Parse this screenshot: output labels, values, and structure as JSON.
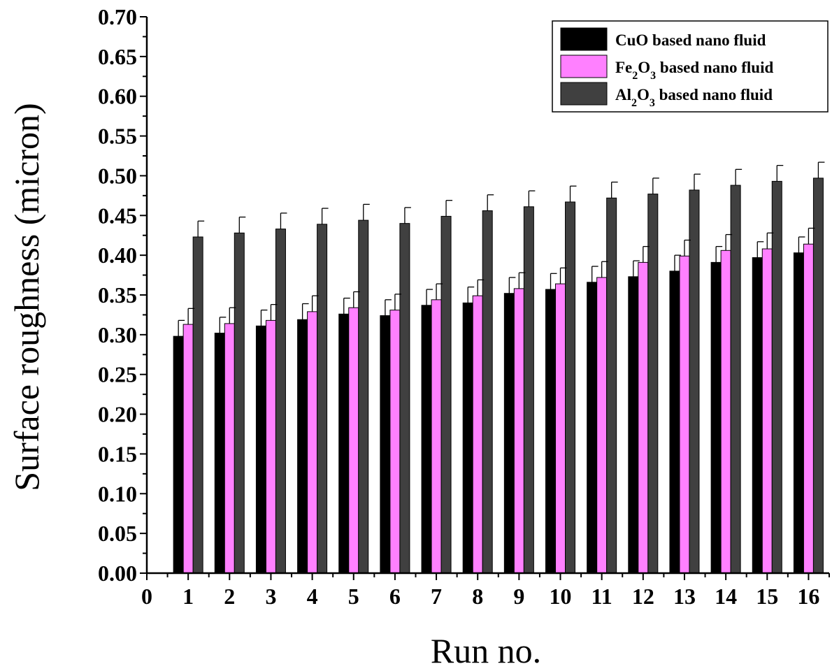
{
  "chart_data": {
    "type": "bar",
    "xlabel": "Run no.",
    "ylabel": "Surface roughness (micron)",
    "xlim": [
      0,
      16.5
    ],
    "ylim": [
      0,
      0.7
    ],
    "x_ticks": [
      0,
      1,
      2,
      3,
      4,
      5,
      6,
      7,
      8,
      9,
      10,
      11,
      12,
      13,
      14,
      15,
      16
    ],
    "y_ticks": [
      "0.00",
      "0.05",
      "0.10",
      "0.15",
      "0.20",
      "0.25",
      "0.30",
      "0.35",
      "0.40",
      "0.45",
      "0.50",
      "0.55",
      "0.60",
      "0.65",
      "0.70"
    ],
    "categories": [
      1,
      2,
      3,
      4,
      5,
      6,
      7,
      8,
      9,
      10,
      11,
      12,
      13,
      14,
      15,
      16
    ],
    "legend_position": "top-right",
    "series": [
      {
        "name": "CuO based nano fluid",
        "label_parts": [
          {
            "t": "CuO based nano fluid"
          }
        ],
        "color": "#000000",
        "values": [
          0.298,
          0.302,
          0.311,
          0.319,
          0.326,
          0.324,
          0.337,
          0.34,
          0.352,
          0.357,
          0.366,
          0.373,
          0.38,
          0.391,
          0.397,
          0.403
        ],
        "errors": [
          0.02,
          0.02,
          0.02,
          0.02,
          0.02,
          0.02,
          0.02,
          0.02,
          0.02,
          0.02,
          0.02,
          0.02,
          0.02,
          0.02,
          0.02,
          0.02
        ]
      },
      {
        "name": "Fe2O3 based nano fluid",
        "label_parts": [
          {
            "t": "Fe"
          },
          {
            "t": "2",
            "sub": true
          },
          {
            "t": "O"
          },
          {
            "t": "3",
            "sub": true
          },
          {
            "t": " based nano fluid"
          }
        ],
        "color": "#ff80ff",
        "values": [
          0.313,
          0.314,
          0.318,
          0.329,
          0.334,
          0.331,
          0.344,
          0.349,
          0.358,
          0.364,
          0.372,
          0.391,
          0.399,
          0.406,
          0.408,
          0.414
        ],
        "errors": [
          0.02,
          0.02,
          0.02,
          0.02,
          0.02,
          0.02,
          0.02,
          0.02,
          0.02,
          0.02,
          0.02,
          0.02,
          0.02,
          0.02,
          0.02,
          0.02
        ]
      },
      {
        "name": "Al2O3 based nano fluid",
        "label_parts": [
          {
            "t": "Al"
          },
          {
            "t": "2",
            "sub": true
          },
          {
            "t": "O"
          },
          {
            "t": "3",
            "sub": true
          },
          {
            "t": " based nano fluid"
          }
        ],
        "color": "#404040",
        "values": [
          0.423,
          0.428,
          0.433,
          0.439,
          0.444,
          0.44,
          0.449,
          0.456,
          0.461,
          0.467,
          0.472,
          0.477,
          0.482,
          0.488,
          0.493,
          0.497
        ],
        "errors": [
          0.02,
          0.02,
          0.02,
          0.02,
          0.02,
          0.02,
          0.02,
          0.02,
          0.02,
          0.02,
          0.02,
          0.02,
          0.02,
          0.02,
          0.02,
          0.02
        ]
      }
    ]
  }
}
